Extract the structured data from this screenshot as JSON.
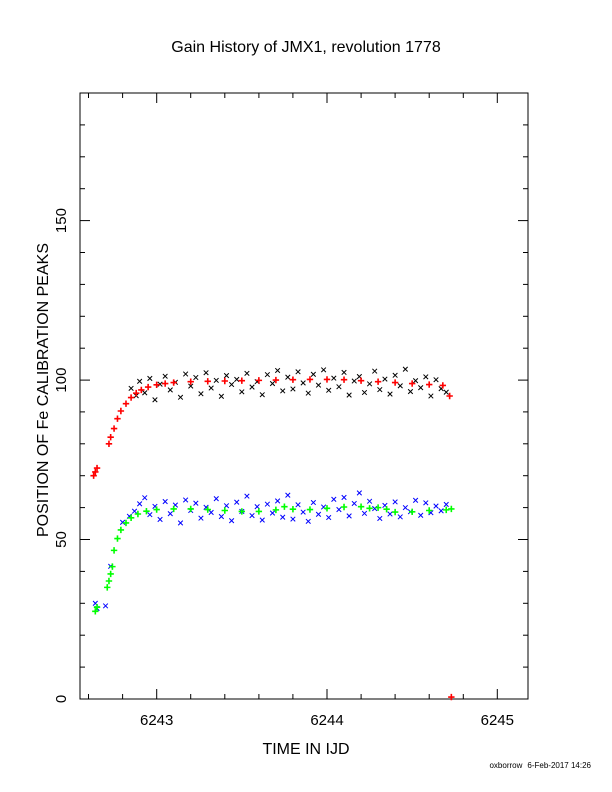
{
  "chart_data": {
    "type": "scatter",
    "title": "Gain History of JMX1, revolution 1778",
    "xlabel": "TIME IN IJD",
    "ylabel": "POSITION OF Fe CALIBRATION PEAKS",
    "xlim": [
      6242.55,
      6245.18
    ],
    "ylim": [
      0,
      190
    ],
    "x_ticks": [
      6243,
      6244,
      6245
    ],
    "x_tick_labels": [
      "6243",
      "6244",
      "6245"
    ],
    "y_ticks": [
      0,
      50,
      100,
      150
    ],
    "y_tick_labels": [
      "0",
      "50",
      "100",
      "150"
    ],
    "grid": false,
    "legend": "none",
    "series": [
      {
        "role": "upper peak raw",
        "color": "#000000",
        "marker": "x",
        "points": [
          [
            6242.85,
            97.4
          ],
          [
            6242.88,
            95.1
          ],
          [
            6242.9,
            99.6
          ],
          [
            6242.93,
            96.0
          ],
          [
            6242.96,
            100.5
          ],
          [
            6242.99,
            93.8
          ],
          [
            6243.02,
            98.7
          ],
          [
            6243.05,
            101.2
          ],
          [
            6243.08,
            96.9
          ],
          [
            6243.11,
            99.3
          ],
          [
            6243.14,
            94.6
          ],
          [
            6243.17,
            101.9
          ],
          [
            6243.2,
            98.1
          ],
          [
            6243.23,
            100.8
          ],
          [
            6243.26,
            95.7
          ],
          [
            6243.29,
            102.3
          ],
          [
            6243.32,
            97.5
          ],
          [
            6243.35,
            99.9
          ],
          [
            6243.38,
            94.9
          ],
          [
            6243.41,
            101.4
          ],
          [
            6243.44,
            98.6
          ],
          [
            6243.47,
            100.2
          ],
          [
            6243.5,
            96.3
          ],
          [
            6243.53,
            102.1
          ],
          [
            6243.56,
            97.8
          ],
          [
            6243.59,
            99.5
          ],
          [
            6243.62,
            95.4
          ],
          [
            6243.65,
            101.7
          ],
          [
            6243.68,
            98.9
          ],
          [
            6243.71,
            103.0
          ],
          [
            6243.74,
            96.6
          ],
          [
            6243.77,
            100.9
          ],
          [
            6243.8,
            97.2
          ],
          [
            6243.83,
            102.6
          ],
          [
            6243.86,
            99.1
          ],
          [
            6243.89,
            95.9
          ],
          [
            6243.92,
            101.8
          ],
          [
            6243.95,
            98.4
          ],
          [
            6243.98,
            103.2
          ],
          [
            6244.01,
            96.8
          ],
          [
            6244.04,
            100.6
          ],
          [
            6244.07,
            97.9
          ],
          [
            6244.1,
            102.4
          ],
          [
            6244.13,
            95.3
          ],
          [
            6244.16,
            99.7
          ],
          [
            6244.19,
            101.1
          ],
          [
            6244.22,
            96.1
          ],
          [
            6244.25,
            98.8
          ],
          [
            6244.28,
            102.8
          ],
          [
            6244.31,
            97.0
          ],
          [
            6244.34,
            100.3
          ],
          [
            6244.37,
            95.6
          ],
          [
            6244.4,
            101.5
          ],
          [
            6244.43,
            98.2
          ],
          [
            6244.46,
            103.4
          ],
          [
            6244.49,
            96.4
          ],
          [
            6244.52,
            99.8
          ],
          [
            6244.55,
            97.6
          ],
          [
            6244.58,
            101.0
          ],
          [
            6244.61,
            95.0
          ],
          [
            6244.64,
            100.1
          ],
          [
            6244.67,
            97.3
          ],
          [
            6244.7,
            96.2
          ]
        ]
      },
      {
        "role": "upper peak fit",
        "color": "#ff0000",
        "marker": "+",
        "points": [
          [
            6242.63,
            70.0
          ],
          [
            6242.64,
            71.2
          ],
          [
            6242.65,
            72.4
          ],
          [
            6242.72,
            80.0
          ],
          [
            6242.73,
            82.1
          ],
          [
            6242.75,
            84.8
          ],
          [
            6242.77,
            87.9
          ],
          [
            6242.79,
            90.3
          ],
          [
            6242.82,
            92.6
          ],
          [
            6242.85,
            94.5
          ],
          [
            6242.88,
            95.9
          ],
          [
            6242.91,
            96.9
          ],
          [
            6242.95,
            97.8
          ],
          [
            6243.0,
            98.5
          ],
          [
            6243.05,
            98.9
          ],
          [
            6243.1,
            99.2
          ],
          [
            6243.2,
            99.5
          ],
          [
            6243.3,
            99.6
          ],
          [
            6243.4,
            99.7
          ],
          [
            6243.5,
            99.8
          ],
          [
            6243.6,
            99.9
          ],
          [
            6243.7,
            100.0
          ],
          [
            6243.8,
            100.1
          ],
          [
            6243.9,
            100.2
          ],
          [
            6244.0,
            100.2
          ],
          [
            6244.1,
            100.1
          ],
          [
            6244.2,
            99.8
          ],
          [
            6244.3,
            99.5
          ],
          [
            6244.4,
            99.2
          ],
          [
            6244.5,
            98.9
          ],
          [
            6244.6,
            98.6
          ],
          [
            6244.68,
            98.3
          ],
          [
            6244.72,
            95.0
          ],
          [
            6244.73,
            0.6
          ]
        ]
      },
      {
        "role": "lower peak raw",
        "color": "#0000ff",
        "marker": "x",
        "points": [
          [
            6242.64,
            30.0
          ],
          [
            6242.65,
            28.4
          ],
          [
            6242.7,
            29.2
          ],
          [
            6242.73,
            41.6
          ],
          [
            6242.8,
            55.4
          ],
          [
            6242.84,
            57.3
          ],
          [
            6242.87,
            58.9
          ],
          [
            6242.9,
            61.2
          ],
          [
            6242.93,
            63.1
          ],
          [
            6242.96,
            57.8
          ],
          [
            6242.99,
            60.4
          ],
          [
            6243.02,
            56.3
          ],
          [
            6243.05,
            61.9
          ],
          [
            6243.08,
            58.1
          ],
          [
            6243.11,
            60.8
          ],
          [
            6243.14,
            55.2
          ],
          [
            6243.17,
            62.4
          ],
          [
            6243.2,
            59.1
          ],
          [
            6243.23,
            61.4
          ],
          [
            6243.26,
            56.7
          ],
          [
            6243.29,
            60.1
          ],
          [
            6243.32,
            58.5
          ],
          [
            6243.35,
            62.8
          ],
          [
            6243.38,
            57.2
          ],
          [
            6243.41,
            60.6
          ],
          [
            6243.44,
            55.9
          ],
          [
            6243.47,
            61.7
          ],
          [
            6243.5,
            58.8
          ],
          [
            6243.53,
            63.6
          ],
          [
            6243.56,
            57.5
          ],
          [
            6243.59,
            60.3
          ],
          [
            6243.62,
            56.1
          ],
          [
            6243.65,
            61.1
          ],
          [
            6243.68,
            58.3
          ],
          [
            6243.71,
            62.1
          ],
          [
            6243.74,
            57.0
          ],
          [
            6243.77,
            63.9
          ],
          [
            6243.8,
            56.4
          ],
          [
            6243.83,
            60.9
          ],
          [
            6243.86,
            58.6
          ],
          [
            6243.89,
            55.7
          ],
          [
            6243.92,
            61.6
          ],
          [
            6243.95,
            57.9
          ],
          [
            6243.98,
            60.2
          ],
          [
            6244.01,
            56.9
          ],
          [
            6244.04,
            62.6
          ],
          [
            6244.07,
            59.4
          ],
          [
            6244.1,
            63.2
          ],
          [
            6244.13,
            57.4
          ],
          [
            6244.16,
            61.3
          ],
          [
            6244.19,
            64.6
          ],
          [
            6244.22,
            58.2
          ],
          [
            6244.25,
            62.0
          ],
          [
            6244.28,
            59.7
          ],
          [
            6244.31,
            56.6
          ],
          [
            6244.34,
            60.7
          ],
          [
            6244.37,
            58.0
          ],
          [
            6244.4,
            61.8
          ],
          [
            6244.43,
            57.1
          ],
          [
            6244.46,
            60.0
          ],
          [
            6244.49,
            58.7
          ],
          [
            6244.52,
            62.3
          ],
          [
            6244.55,
            57.6
          ],
          [
            6244.58,
            61.5
          ],
          [
            6244.61,
            58.4
          ],
          [
            6244.64,
            60.5
          ],
          [
            6244.67,
            59.0
          ],
          [
            6244.7,
            61.0
          ]
        ]
      },
      {
        "role": "lower peak fit",
        "color": "#00ff00",
        "marker": "+",
        "points": [
          [
            6242.64,
            27.5
          ],
          [
            6242.65,
            28.8
          ],
          [
            6242.71,
            35.0
          ],
          [
            6242.72,
            37.0
          ],
          [
            6242.73,
            39.2
          ],
          [
            6242.74,
            41.5
          ],
          [
            6242.75,
            46.6
          ],
          [
            6242.77,
            50.3
          ],
          [
            6242.79,
            53.0
          ],
          [
            6242.82,
            55.2
          ],
          [
            6242.85,
            56.8
          ],
          [
            6242.89,
            58.0
          ],
          [
            6242.94,
            58.9
          ],
          [
            6243.0,
            59.4
          ],
          [
            6243.1,
            59.6
          ],
          [
            6243.2,
            59.6
          ],
          [
            6243.3,
            59.4
          ],
          [
            6243.4,
            59.1
          ],
          [
            6243.5,
            58.8
          ],
          [
            6243.6,
            58.8
          ],
          [
            6243.7,
            59.3
          ],
          [
            6243.75,
            60.3
          ],
          [
            6243.8,
            59.5
          ],
          [
            6243.9,
            59.4
          ],
          [
            6244.0,
            59.8
          ],
          [
            6244.1,
            60.2
          ],
          [
            6244.2,
            60.3
          ],
          [
            6244.25,
            59.8
          ],
          [
            6244.3,
            60.0
          ],
          [
            6244.35,
            59.5
          ],
          [
            6244.4,
            58.6
          ],
          [
            6244.5,
            58.7
          ],
          [
            6244.6,
            59.1
          ],
          [
            6244.7,
            59.3
          ],
          [
            6244.73,
            59.6
          ]
        ]
      }
    ]
  },
  "footer": {
    "author": "oxborrow",
    "date": "6-Feb-2017 14:26"
  }
}
